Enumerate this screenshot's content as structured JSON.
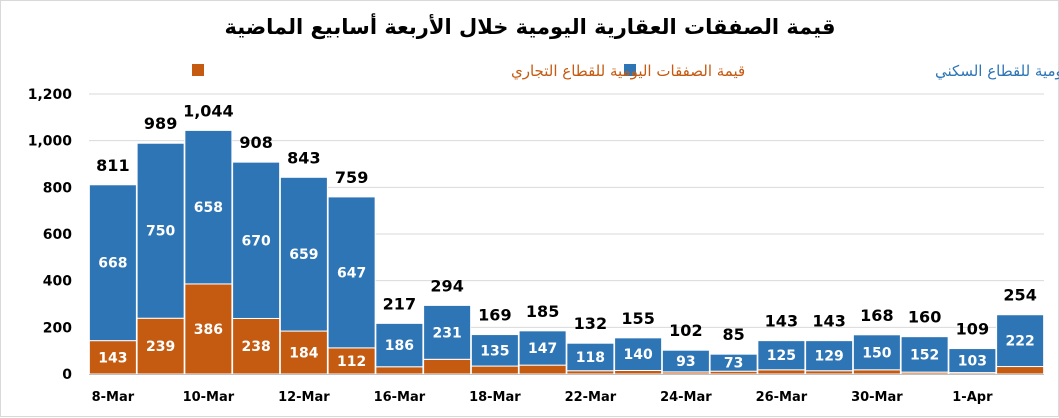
{
  "chart_data": {
    "type": "bar",
    "stacked": true,
    "title": "قيمة الصفقات العقارية اليومية خلال الأربعة أسابيع الماضية",
    "ylim": [
      0,
      1200
    ],
    "yticks": [
      "0",
      "200",
      "400",
      "600",
      "800",
      "1,000",
      "1,200"
    ],
    "grid": true,
    "legend_position": "top",
    "x_tick_labels": [
      "8-Mar",
      "10-Mar",
      "12-Mar",
      "16-Mar",
      "18-Mar",
      "22-Mar",
      "24-Mar",
      "26-Mar",
      "30-Mar",
      "1-Apr"
    ],
    "series": [
      {
        "name": "قيمة الصفقات اليومية للقطاع التجاري",
        "color": "#c55a11",
        "values": [
          143,
          239,
          386,
          238,
          184,
          112,
          31,
          63,
          34,
          38,
          14,
          15,
          9,
          12,
          18,
          14,
          18,
          8,
          6,
          32
        ],
        "labels": [
          "143",
          "239",
          "386",
          "238",
          "184",
          "112",
          "",
          "",
          "",
          "",
          "",
          "",
          "",
          "",
          "",
          "",
          "",
          "",
          "",
          ""
        ]
      },
      {
        "name": "قيمة الصفقات اليومية للقطاع السكني",
        "color": "#2e75b6",
        "values": [
          668,
          750,
          658,
          670,
          659,
          647,
          186,
          231,
          135,
          147,
          118,
          140,
          93,
          73,
          125,
          129,
          150,
          152,
          103,
          222
        ],
        "labels": [
          "668",
          "750",
          "658",
          "670",
          "659",
          "647",
          "186",
          "231",
          "135",
          "147",
          "118",
          "140",
          "93",
          "73",
          "125",
          "129",
          "150",
          "152",
          "103",
          "222"
        ]
      }
    ],
    "totals": [
      "811",
      "989",
      "1,044",
      "908",
      "843",
      "759",
      "217",
      "294",
      "169",
      "185",
      "132",
      "155",
      "102",
      "85",
      "143",
      "143",
      "168",
      "160",
      "109",
      "254"
    ]
  }
}
